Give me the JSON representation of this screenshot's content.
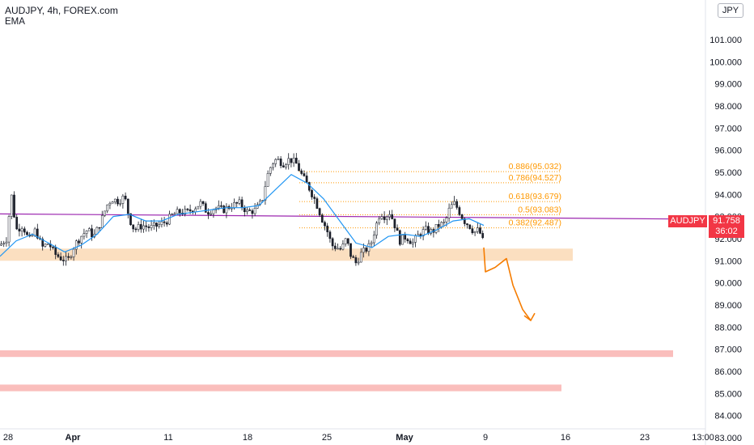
{
  "header": {
    "title": "AUDJPY, 4h, FOREX.com",
    "indicator": "EMA",
    "currency": "JPY"
  },
  "last_price": {
    "symbol": "AUDJPY",
    "price": "91.758",
    "countdown": "36:02"
  },
  "colors": {
    "up": "#089981",
    "down": "#f23645",
    "wick": "#131722",
    "body": "#1e222d",
    "ema": "#2196f3",
    "trendline": "#9c27b0",
    "fib": "#ff9800",
    "support_zone": "#fad9b5",
    "target_zone": "#f9b7b5",
    "arrow": "#f57c00"
  },
  "chart_data": {
    "type": "candlestick",
    "symbol": "AUDJPY",
    "timeframe": "4h",
    "y_axis": {
      "range": [
        82.6,
        102.0
      ],
      "ticks": [
        "101.000",
        "100.000",
        "99.000",
        "98.000",
        "97.000",
        "96.000",
        "95.000",
        "94.000",
        "93.000",
        "92.000",
        "91.000",
        "90.000",
        "89.000",
        "88.000",
        "87.000",
        "86.000",
        "85.000",
        "84.000",
        "83.000"
      ]
    },
    "x_axis": {
      "ticks": [
        "28",
        "Apr",
        "11",
        "18",
        "25",
        "May",
        "9",
        "16",
        "23",
        "13:00"
      ]
    },
    "price_path": [
      [
        0,
        91.7
      ],
      [
        8,
        92.0
      ],
      [
        14,
        94.0
      ],
      [
        20,
        92.4
      ],
      [
        28,
        92.6
      ],
      [
        36,
        91.9
      ],
      [
        44,
        92.4
      ],
      [
        52,
        91.6
      ],
      [
        60,
        91.8
      ],
      [
        68,
        91.3
      ],
      [
        76,
        91.1
      ],
      [
        84,
        91.0
      ],
      [
        92,
        91.7
      ],
      [
        100,
        92.1
      ],
      [
        108,
        92.4
      ],
      [
        116,
        92.1
      ],
      [
        124,
        92.7
      ],
      [
        132,
        93.5
      ],
      [
        138,
        93.8
      ],
      [
        146,
        93.7
      ],
      [
        154,
        93.9
      ],
      [
        160,
        92.9
      ],
      [
        166,
        92.4
      ],
      [
        176,
        92.6
      ],
      [
        186,
        92.5
      ],
      [
        196,
        92.6
      ],
      [
        206,
        92.8
      ],
      [
        214,
        93.1
      ],
      [
        222,
        93.2
      ],
      [
        232,
        93.2
      ],
      [
        240,
        93.4
      ],
      [
        248,
        93.6
      ],
      [
        256,
        93.2
      ],
      [
        266,
        93.4
      ],
      [
        276,
        93.3
      ],
      [
        286,
        93.5
      ],
      [
        296,
        93.6
      ],
      [
        306,
        93.2
      ],
      [
        316,
        93.3
      ],
      [
        324,
        93.7
      ],
      [
        330,
        94.8
      ],
      [
        336,
        95.4
      ],
      [
        342,
        95.6
      ],
      [
        350,
        95.4
      ],
      [
        358,
        95.6
      ],
      [
        366,
        95.4
      ],
      [
        374,
        94.8
      ],
      [
        382,
        94.3
      ],
      [
        390,
        93.7
      ],
      [
        398,
        92.9
      ],
      [
        404,
        92.4
      ],
      [
        410,
        91.7
      ],
      [
        416,
        91.6
      ],
      [
        422,
        91.5
      ],
      [
        428,
        92.0
      ],
      [
        434,
        91.2
      ],
      [
        440,
        90.9
      ],
      [
        446,
        91.3
      ],
      [
        452,
        91.5
      ],
      [
        458,
        91.7
      ],
      [
        464,
        92.5
      ],
      [
        470,
        93.2
      ],
      [
        476,
        93.0
      ],
      [
        482,
        93.2
      ],
      [
        488,
        92.6
      ],
      [
        494,
        91.9
      ],
      [
        502,
        92.1
      ],
      [
        510,
        91.8
      ],
      [
        518,
        92.2
      ],
      [
        526,
        92.4
      ],
      [
        534,
        92.3
      ],
      [
        542,
        92.6
      ],
      [
        550,
        92.7
      ],
      [
        556,
        93.4
      ],
      [
        562,
        93.6
      ],
      [
        568,
        93.2
      ],
      [
        574,
        92.8
      ],
      [
        580,
        92.6
      ],
      [
        586,
        92.3
      ],
      [
        592,
        92.4
      ],
      [
        598,
        91.76
      ]
    ],
    "ema_path": [
      [
        0,
        91.2
      ],
      [
        20,
        91.9
      ],
      [
        40,
        92.2
      ],
      [
        60,
        91.8
      ],
      [
        80,
        91.4
      ],
      [
        100,
        91.7
      ],
      [
        120,
        92.2
      ],
      [
        140,
        93.0
      ],
      [
        160,
        93.1
      ],
      [
        180,
        92.8
      ],
      [
        200,
        92.8
      ],
      [
        220,
        93.1
      ],
      [
        240,
        93.2
      ],
      [
        260,
        93.3
      ],
      [
        280,
        93.4
      ],
      [
        300,
        93.4
      ],
      [
        320,
        93.5
      ],
      [
        340,
        94.2
      ],
      [
        360,
        94.9
      ],
      [
        380,
        94.5
      ],
      [
        400,
        93.8
      ],
      [
        420,
        92.8
      ],
      [
        440,
        91.8
      ],
      [
        460,
        91.6
      ],
      [
        480,
        92.1
      ],
      [
        500,
        92.2
      ],
      [
        520,
        92.1
      ],
      [
        540,
        92.4
      ],
      [
        560,
        92.8
      ],
      [
        580,
        92.9
      ],
      [
        598,
        92.6
      ]
    ],
    "annotations": {
      "trendline": {
        "from": [
          0,
          93.12
        ],
        "to": [
          872,
          92.88
        ]
      },
      "support_zone": {
        "x": [
          0,
          708
        ],
        "y": [
          91.0,
          91.55
        ]
      },
      "target_zones": [
        {
          "x": [
            0,
            832
          ],
          "y": [
            86.65,
            86.95
          ]
        },
        {
          "x": [
            0,
            694
          ],
          "y": [
            85.1,
            85.4
          ]
        }
      ],
      "fib_levels": [
        {
          "label": "0.886(95.032)",
          "price": 95.032
        },
        {
          "label": "0.786(94.527)",
          "price": 94.527
        },
        {
          "label": "0.618(93.679)",
          "price": 93.679
        },
        {
          "label": "0.5(93.083)",
          "price": 93.083
        },
        {
          "label": "0.382(92.487)",
          "price": 92.487
        }
      ],
      "fib_x": [
        370,
        694
      ],
      "projection_arrow": [
        [
          598,
          91.6
        ],
        [
          600,
          90.5
        ],
        [
          612,
          90.7
        ],
        [
          626,
          91.1
        ],
        [
          634,
          89.9
        ],
        [
          646,
          88.8
        ],
        [
          656,
          88.3
        ]
      ]
    }
  }
}
